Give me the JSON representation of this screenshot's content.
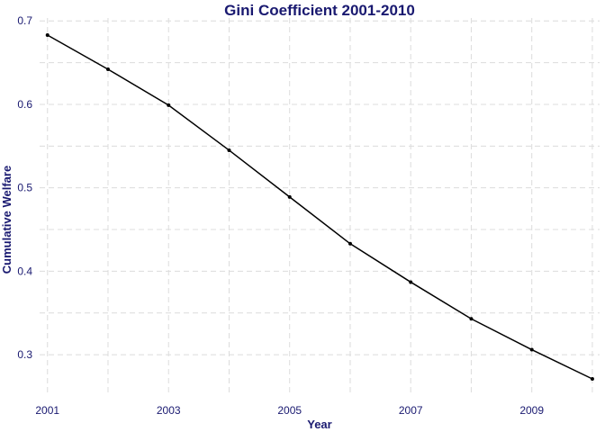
{
  "colors": {
    "text": "#191970",
    "line": "#000000",
    "grid": "#dcdcdc"
  },
  "chart_data": {
    "type": "line",
    "title": "Gini Coefficient 2001-2010",
    "xlabel": "Year",
    "ylabel": "Cumulative Welfare",
    "x": [
      2001,
      2002,
      2003,
      2004,
      2005,
      2006,
      2007,
      2008,
      2009,
      2010
    ],
    "series": [
      {
        "values": [
          0.683,
          0.642,
          0.599,
          0.545,
          0.489,
          0.433,
          0.387,
          0.343,
          0.306,
          0.271
        ]
      }
    ],
    "xticks": [
      2001,
      2003,
      2005,
      2007,
      2009
    ],
    "yticks": [
      0.3,
      0.4,
      0.5,
      0.6,
      0.7
    ],
    "ytick_labels": [
      "0.3",
      "0.4",
      "0.5",
      "0.6",
      "0.7"
    ],
    "xlim": [
      2000.87,
      2010.12
    ],
    "ylim": [
      0.2505,
      0.7035
    ],
    "grid": true,
    "grid_style": "dashed",
    "legend": false
  }
}
